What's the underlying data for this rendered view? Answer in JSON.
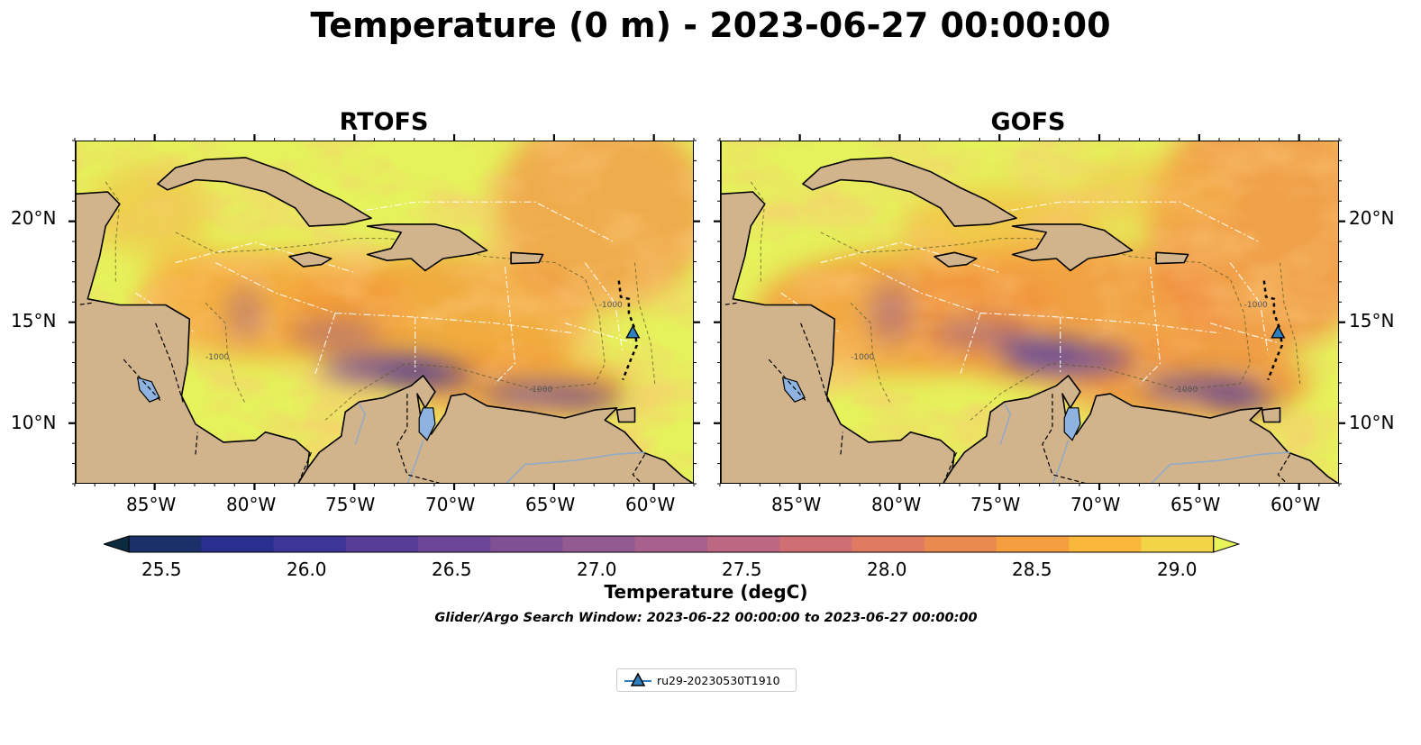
{
  "title": "Temperature (0 m) - 2023-06-27 00:00:00",
  "panels": [
    {
      "title": "RTOFS"
    },
    {
      "title": "GOFS"
    }
  ],
  "x_ticks": [
    "85°W",
    "80°W",
    "75°W",
    "70°W",
    "65°W",
    "60°W"
  ],
  "y_ticks": [
    "20°N",
    "15°N",
    "10°N"
  ],
  "colorbar": {
    "label": "Temperature (degC)",
    "ticks": [
      "25.5",
      "26.0",
      "26.5",
      "27.0",
      "27.5",
      "28.0",
      "28.5",
      "29.0"
    ],
    "range": [
      25.5,
      29.25
    ],
    "extend": "both"
  },
  "search_window": "Glider/Argo Search Window: 2023-06-22 00:00:00 to 2023-06-27 00:00:00",
  "legend": {
    "label": "ru29-20230530T1910",
    "marker": "triangle",
    "color": "#2e7fbf"
  },
  "map_extent": {
    "lon": [
      -89,
      -58
    ],
    "lat": [
      7,
      24
    ]
  },
  "glider_position": {
    "lon": -61.1,
    "lat": 14.5
  },
  "contour_label": "-1000",
  "colors": {
    "land": "#d2b48c",
    "lake": "#8fb3e0",
    "warm": "#e8f55a",
    "hot": "#f5a53c",
    "cool": "#5a3f96"
  }
}
